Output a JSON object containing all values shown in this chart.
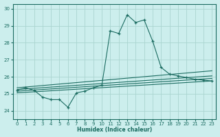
{
  "xlabel": "Humidex (Indice chaleur)",
  "bg_color": "#cceeed",
  "grid_color": "#aad4d0",
  "line_color": "#1a6b60",
  "xlim": [
    -0.5,
    23.5
  ],
  "ylim": [
    23.5,
    30.3
  ],
  "yticks": [
    24,
    25,
    26,
    27,
    28,
    29,
    30
  ],
  "xticks": [
    0,
    1,
    2,
    3,
    4,
    5,
    6,
    7,
    8,
    9,
    10,
    11,
    12,
    13,
    14,
    15,
    16,
    17,
    18,
    19,
    20,
    21,
    22,
    23
  ],
  "main_series_x": [
    0,
    1,
    2,
    3,
    4,
    5,
    6,
    7,
    8,
    9,
    10,
    11,
    12,
    13,
    14,
    15,
    16,
    17,
    18,
    19,
    20,
    21,
    22,
    23
  ],
  "main_series_y": [
    25.2,
    25.35,
    25.2,
    24.8,
    24.65,
    24.65,
    24.2,
    25.05,
    25.15,
    25.35,
    25.5,
    28.7,
    28.55,
    29.65,
    29.2,
    29.35,
    28.1,
    26.55,
    26.15,
    26.05,
    25.95,
    25.85,
    25.8,
    25.75
  ],
  "line2_x": [
    0,
    23
  ],
  "line2_y": [
    25.15,
    25.9
  ],
  "line3_x": [
    0,
    23
  ],
  "line3_y": [
    25.05,
    25.75
  ],
  "line4_x": [
    0,
    23
  ],
  "line4_y": [
    25.25,
    26.05
  ],
  "line5_x": [
    0,
    23
  ],
  "line5_y": [
    25.35,
    26.35
  ]
}
